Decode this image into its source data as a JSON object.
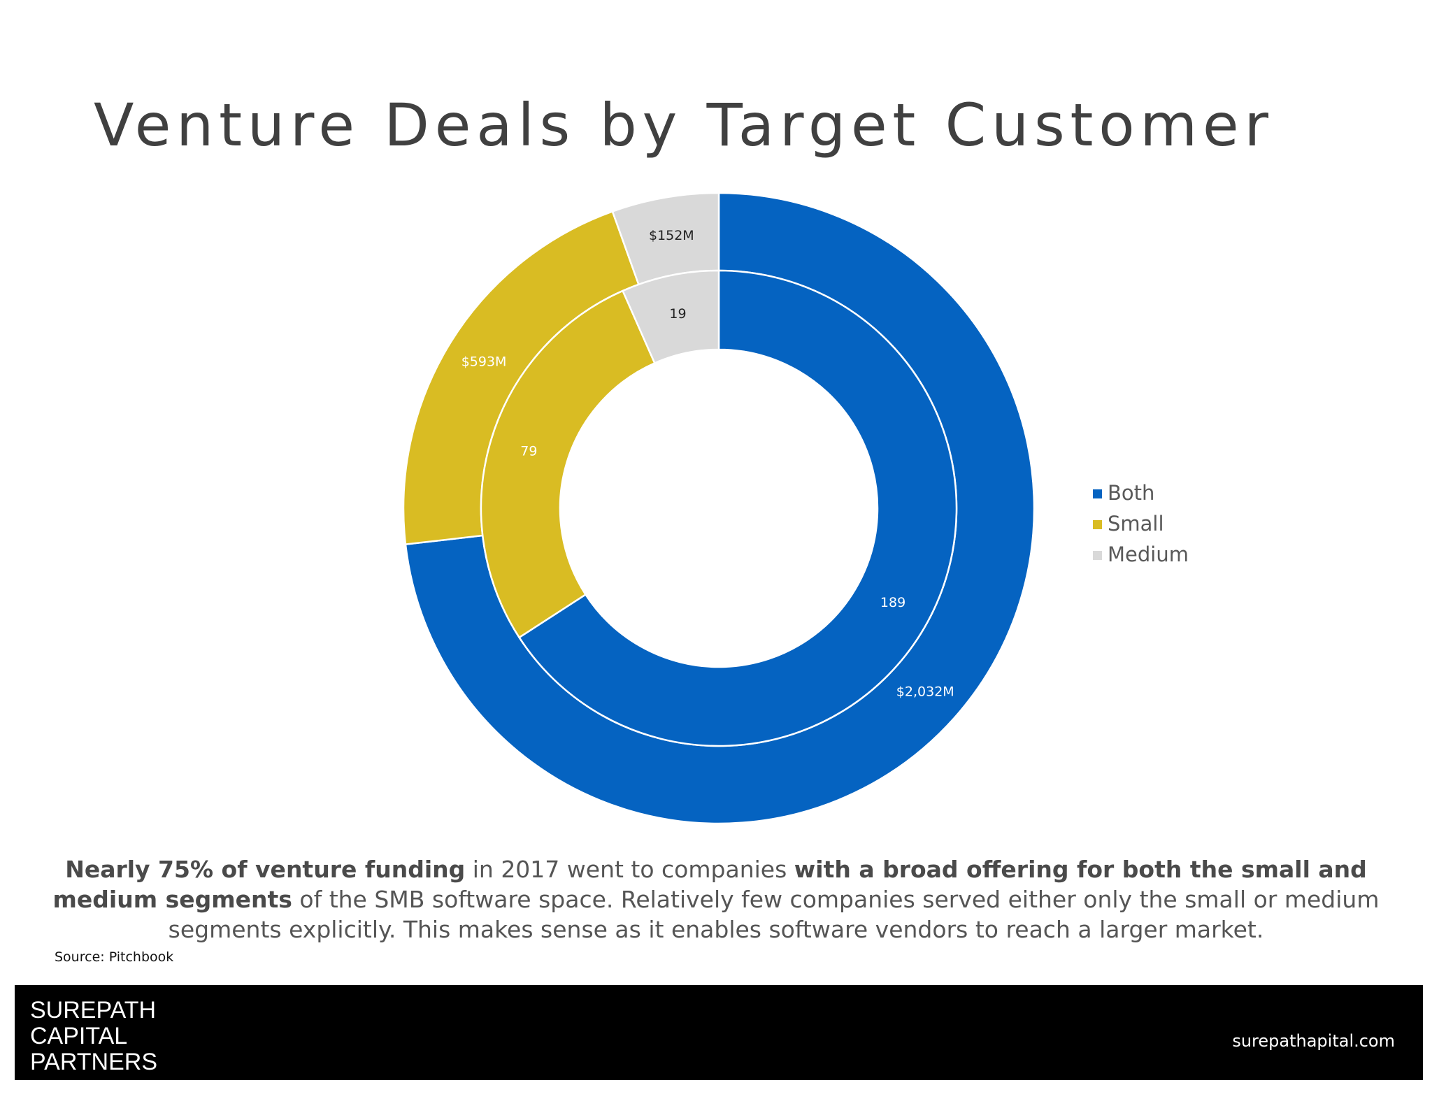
{
  "chart_data": {
    "type": "donut",
    "title": "Venture Deals by Target Customer",
    "categories": [
      "Both",
      "Small",
      "Medium"
    ],
    "colors": [
      "#0563c1",
      "#d9bc23",
      "#d9d9d9"
    ],
    "label_colors": [
      "#ffffff",
      "#ffffff",
      "#222222"
    ],
    "series": [
      {
        "values": [
          2032,
          593,
          152
        ],
        "value_labels": [
          "$2,032M",
          "$593M",
          "$152M"
        ]
      },
      {
        "values": [
          189,
          79,
          19
        ]
      }
    ],
    "legend": "right"
  },
  "caption": [
    {
      "text": "Nearly 75% of venture funding",
      "bold": true
    },
    {
      "text": " in 2017 went to companies ",
      "bold": false
    },
    {
      "text": "with a broad offering for both the small and medium segments",
      "bold": true
    },
    {
      "text": " of the SMB software space. Relatively few companies served either only the small or medium segments explicitly. This makes sense as it enables software vendors to reach a larger market.",
      "bold": false
    }
  ],
  "source": "Source: Pitchbook",
  "footer": {
    "logo": [
      "SUREPATH",
      "CAPITAL",
      "PARTNERS"
    ],
    "url": "surepathapital.com"
  }
}
